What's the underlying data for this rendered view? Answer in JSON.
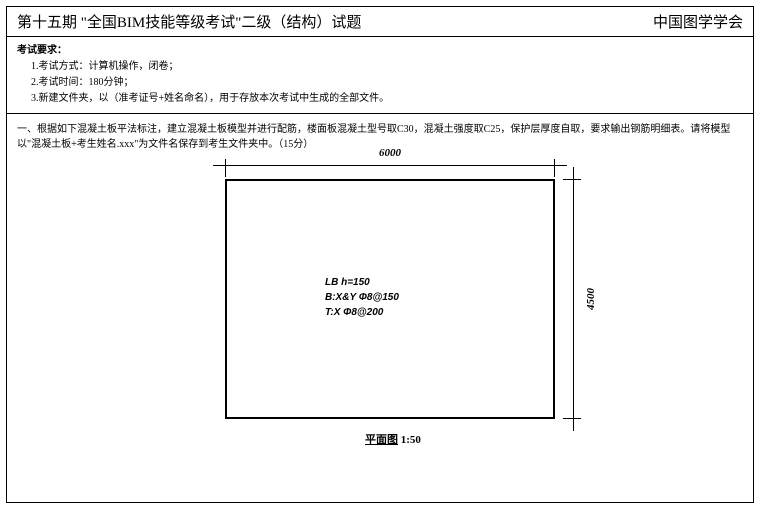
{
  "header": {
    "left": "第十五期  \"全国BIM技能等级考试\"二级（结构）试题",
    "right": "中国图学学会"
  },
  "requirements": {
    "title": "考试要求：",
    "items": [
      "1.考试方式：计算机操作，闭卷；",
      "2.考试时间：180分钟；",
      "3.新建文件夹，以（准考证号+姓名命名），用于存放本次考试中生成的全部文件。"
    ]
  },
  "question": {
    "text": "一、根据如下混凝土板平法标注，建立混凝土板模型并进行配筋，楼面板混凝土型号取C30，混凝土强度取C25，保护层厚度自取，要求输出钢筋明细表。请将模型以\"混凝土板+考生姓名.xxx\"为文件名保存到考生文件夹中。（15分）"
  },
  "drawing": {
    "width_label": "6000",
    "height_label": "4500",
    "slab": {
      "line1": "LB h=150",
      "line2": "B:X&Y Φ8@150",
      "line3": "T:X Φ8@200"
    },
    "title_underline": "平面图",
    "title_scale": " 1:50"
  },
  "style": {
    "rect_border_color": "#000000",
    "dim_font_size": 11,
    "body_font_size": 10
  }
}
